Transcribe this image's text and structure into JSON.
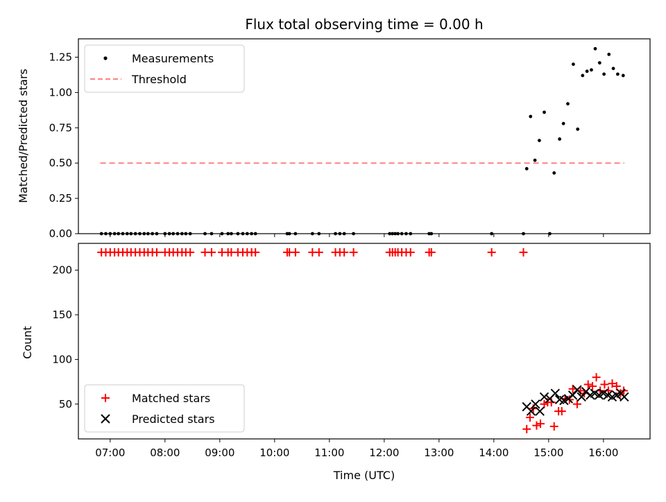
{
  "chart_data": [
    {
      "type": "scatter",
      "title": "Flux total observing time = 0.00 h",
      "xlabel": "",
      "ylabel": "Matched/Predicted stars",
      "xlim": [
        6.42,
        16.85
      ],
      "ylim": [
        0.0,
        1.38
      ],
      "yticks": [
        0.0,
        0.25,
        0.5,
        0.75,
        1.0,
        1.25
      ],
      "ytick_labels": [
        "0.00",
        "0.25",
        "0.50",
        "0.75",
        "1.00",
        "1.25"
      ],
      "legend": {
        "position": "top-left",
        "entries": [
          {
            "label": "Measurements",
            "marker": "dot",
            "color": "#000000"
          },
          {
            "label": "Threshold",
            "marker": "dashed-line",
            "color": "#ff8080"
          }
        ]
      },
      "threshold": {
        "value": 0.5,
        "x_start": 6.82,
        "x_end": 16.38,
        "color": "#ff8080"
      },
      "series": [
        {
          "name": "Measurements",
          "color": "#000000",
          "x": [
            6.84,
            6.92,
            7.0,
            7.08,
            7.15,
            7.23,
            7.31,
            7.38,
            7.46,
            7.54,
            7.62,
            7.69,
            7.77,
            7.85,
            8.0,
            8.08,
            8.15,
            8.23,
            8.31,
            8.38,
            8.46,
            8.73,
            8.85,
            9.04,
            9.15,
            9.21,
            9.33,
            9.42,
            9.5,
            9.58,
            9.65,
            10.23,
            10.27,
            10.38,
            10.69,
            10.81,
            11.11,
            11.19,
            11.27,
            11.44,
            12.1,
            12.15,
            12.2,
            12.25,
            12.32,
            12.4,
            12.48,
            12.82,
            12.86,
            13.96,
            14.54,
            14.6,
            14.67,
            14.75,
            14.83,
            14.92,
            15.02,
            15.1,
            15.2,
            15.27,
            15.35,
            15.45,
            15.53,
            15.62,
            15.7,
            15.78,
            15.85,
            15.93,
            16.01,
            16.1,
            16.18,
            16.26,
            16.36
          ],
          "y": [
            0,
            0,
            0,
            0,
            0,
            0,
            0,
            0,
            0,
            0,
            0,
            0,
            0,
            0,
            0,
            0,
            0,
            0,
            0,
            0,
            0,
            0,
            0,
            0,
            0,
            0,
            0,
            0,
            0,
            0,
            0,
            0,
            0,
            0,
            0,
            0,
            0,
            0,
            0,
            0,
            0,
            0,
            0,
            0,
            0,
            0,
            0,
            0,
            0,
            0,
            0,
            0.46,
            0.83,
            0.52,
            0.66,
            0.86,
            0.0,
            0.43,
            0.67,
            0.78,
            0.92,
            1.2,
            0.74,
            1.12,
            1.15,
            1.16,
            1.31,
            1.21,
            1.13,
            1.27,
            1.17,
            1.13,
            1.12
          ]
        }
      ]
    },
    {
      "type": "scatter",
      "title": "",
      "xlabel": "Time (UTC)",
      "ylabel": "Count",
      "xlim": [
        6.42,
        16.85
      ],
      "ylim": [
        11,
        230
      ],
      "yticks": [
        50,
        100,
        150,
        200
      ],
      "ytick_labels": [
        "50",
        "100",
        "150",
        "200"
      ],
      "xticks": [
        7,
        8,
        9,
        10,
        11,
        12,
        13,
        14,
        15,
        16
      ],
      "xtick_labels": [
        "07:00",
        "08:00",
        "09:00",
        "10:00",
        "11:00",
        "12:00",
        "13:00",
        "14:00",
        "15:00",
        "16:00"
      ],
      "legend": {
        "position": "bottom-left",
        "entries": [
          {
            "label": "Matched stars",
            "marker": "plus",
            "color": "#ff0000"
          },
          {
            "label": "Predicted stars",
            "marker": "x",
            "color": "#000000"
          }
        ]
      },
      "series": [
        {
          "name": "Matched stars",
          "color": "#ff0000",
          "marker": "plus",
          "x": [
            6.84,
            6.92,
            7.0,
            7.08,
            7.15,
            7.23,
            7.31,
            7.38,
            7.46,
            7.54,
            7.62,
            7.69,
            7.77,
            7.85,
            8.0,
            8.08,
            8.15,
            8.23,
            8.31,
            8.38,
            8.46,
            8.73,
            8.85,
            9.04,
            9.15,
            9.21,
            9.33,
            9.42,
            9.5,
            9.58,
            9.65,
            10.23,
            10.27,
            10.38,
            10.69,
            10.81,
            11.11,
            11.19,
            11.27,
            11.44,
            12.1,
            12.15,
            12.2,
            12.25,
            12.32,
            12.4,
            12.48,
            12.82,
            12.86,
            13.96,
            14.54,
            14.6,
            14.66,
            14.72,
            14.78,
            14.85,
            14.92,
            14.98,
            15.05,
            15.1,
            15.18,
            15.24,
            15.3,
            15.38,
            15.44,
            15.52,
            15.58,
            15.65,
            15.72,
            15.8,
            15.87,
            15.94,
            16.02,
            16.09,
            16.16,
            16.24,
            16.31,
            16.37
          ],
          "y": [
            220,
            220,
            220,
            220,
            220,
            220,
            220,
            220,
            220,
            220,
            220,
            220,
            220,
            220,
            220,
            220,
            220,
            220,
            220,
            220,
            220,
            220,
            220,
            220,
            220,
            220,
            220,
            220,
            220,
            220,
            220,
            220,
            220,
            220,
            220,
            220,
            220,
            220,
            220,
            220,
            220,
            220,
            220,
            220,
            220,
            220,
            220,
            220,
            220,
            220,
            220,
            22,
            35,
            45,
            26,
            28,
            50,
            52,
            52,
            25,
            42,
            42,
            56,
            55,
            67,
            50,
            65,
            62,
            72,
            70,
            80,
            65,
            72,
            65,
            73,
            70,
            62,
            65
          ]
        },
        {
          "name": "Predicted stars",
          "color": "#000000",
          "marker": "x",
          "x": [
            14.6,
            14.68,
            14.76,
            14.84,
            14.92,
            15.02,
            15.12,
            15.2,
            15.28,
            15.36,
            15.44,
            15.52,
            15.6,
            15.68,
            15.76,
            15.84,
            15.92,
            16.0,
            16.08,
            16.16,
            16.24,
            16.32,
            16.38
          ],
          "y": [
            47,
            42,
            50,
            42,
            58,
            56,
            62,
            55,
            54,
            56,
            60,
            66,
            58,
            64,
            60,
            62,
            60,
            62,
            60,
            58,
            60,
            62,
            58
          ]
        }
      ]
    }
  ]
}
